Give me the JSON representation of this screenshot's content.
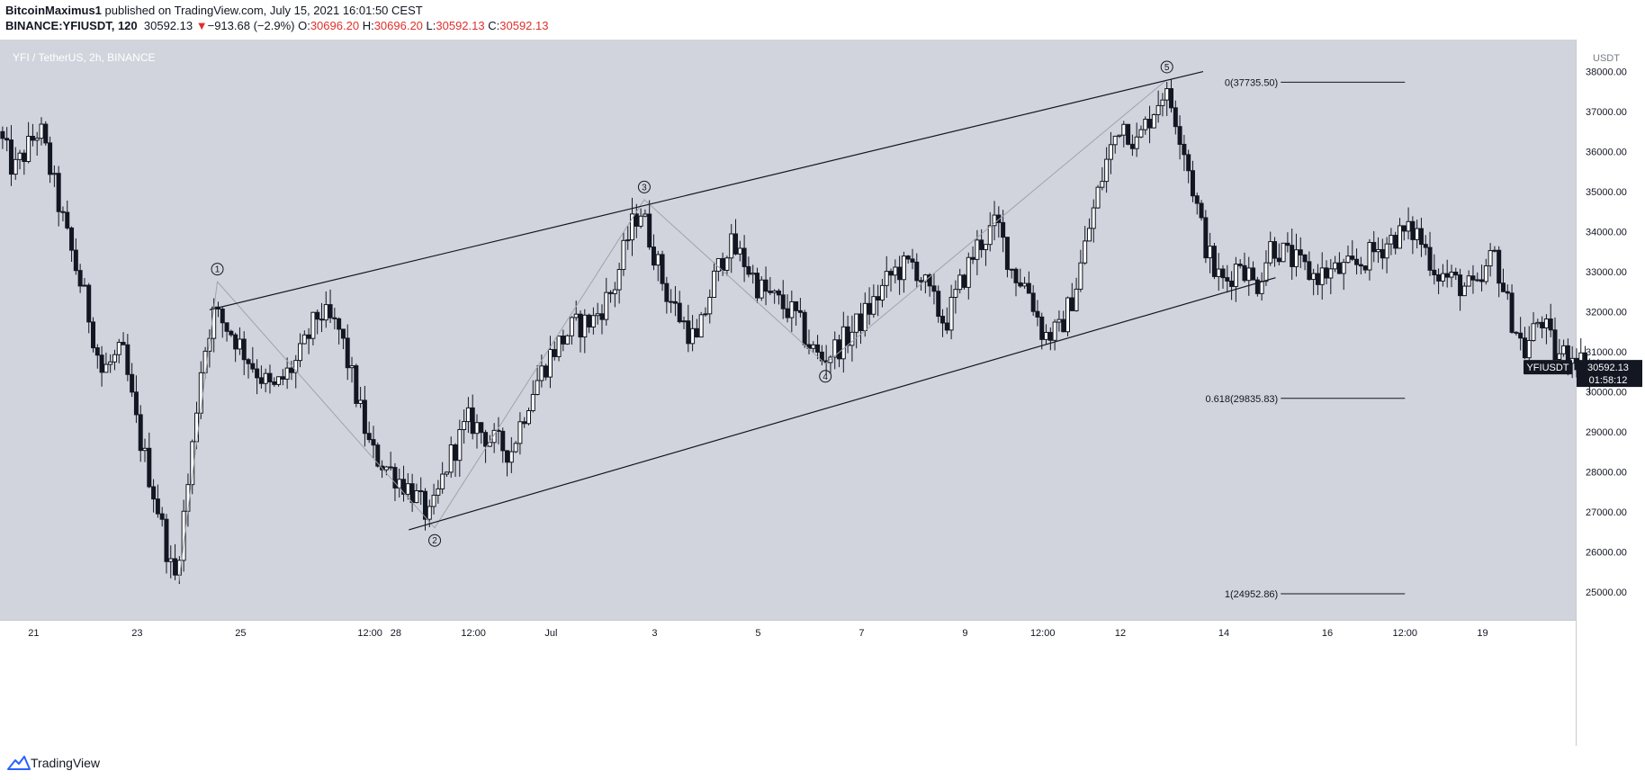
{
  "header": {
    "author": "BitcoinMaximus1",
    "published": "published on TradingView.com, July 15, 2021 16:01:50 CEST",
    "symbol_line": "BINANCE:YFIUSDT, 120",
    "last_price": "30592.13",
    "change_arrow": "▼",
    "change": "−913.68 (−2.9%)",
    "o_label": "O:",
    "o_value": "30696.20",
    "h_label": "H:",
    "h_value": "30696.20",
    "l_label": "L:",
    "l_value": "30592.13",
    "c_label": "C:",
    "c_value": "30592.13"
  },
  "footer": {
    "brand": "TradingView"
  },
  "colors": {
    "plot_bg": "#d1d4dc",
    "axis_bg": "#ffffff",
    "candle": "#131722",
    "down_red": "#e0302d",
    "price_badge_bg": "#131722",
    "price_badge_text": "#ffffff",
    "zigzag": "#a0a3aa"
  },
  "chart_data": {
    "type": "candlestick",
    "title": "YFI / TetherUS, 2h, BINANCE",
    "currency": "USDT",
    "symbol_badge": "YFIUSDT",
    "last_price": "30592.13",
    "countdown": "01:58:12",
    "ylim": [
      24300,
      38800
    ],
    "y_ticks": [
      "25000.00",
      "26000.00",
      "27000.00",
      "28000.00",
      "29000.00",
      "30000.00",
      "31000.00",
      "32000.00",
      "33000.00",
      "34000.00",
      "35000.00",
      "36000.00",
      "37000.00",
      "38000.00"
    ],
    "x_ticks": [
      "21",
      "23",
      "25",
      "12:00",
      "28",
      "12:00",
      "Jul",
      "3",
      "5",
      "7",
      "9",
      "12:00",
      "12",
      "14",
      "16",
      "12:00",
      "19"
    ],
    "x_tick_days": [
      0,
      2,
      4,
      6.5,
      7,
      8.5,
      10,
      12,
      14,
      16,
      18,
      19.5,
      21,
      23,
      25,
      26.5,
      28
    ],
    "x_range_days": [
      -0.65,
      29.8
    ],
    "path": [
      [
        -0.6,
        36500
      ],
      [
        -0.3,
        35500
      ],
      [
        0.2,
        36600
      ],
      [
        0.7,
        34000
      ],
      [
        1.1,
        32200
      ],
      [
        1.4,
        30500
      ],
      [
        1.8,
        31000
      ],
      [
        2.1,
        29000
      ],
      [
        2.5,
        27000
      ],
      [
        2.8,
        25200
      ],
      [
        3.1,
        28000
      ],
      [
        3.3,
        30500
      ],
      [
        3.55,
        32000
      ],
      [
        3.9,
        31500
      ],
      [
        4.3,
        30700
      ],
      [
        4.7,
        30000
      ],
      [
        5.2,
        30800
      ],
      [
        5.6,
        32000
      ],
      [
        6.0,
        31500
      ],
      [
        6.3,
        30000
      ],
      [
        6.6,
        28500
      ],
      [
        7.0,
        28000
      ],
      [
        7.4,
        27500
      ],
      [
        7.75,
        26800
      ],
      [
        8.1,
        28300
      ],
      [
        8.5,
        29300
      ],
      [
        8.9,
        28800
      ],
      [
        9.3,
        28500
      ],
      [
        9.7,
        30000
      ],
      [
        10.1,
        31000
      ],
      [
        10.5,
        31600
      ],
      [
        10.9,
        31800
      ],
      [
        11.3,
        32600
      ],
      [
        11.6,
        34000
      ],
      [
        11.8,
        34600
      ],
      [
        12.0,
        33800
      ],
      [
        12.3,
        32500
      ],
      [
        12.6,
        31800
      ],
      [
        12.9,
        31200
      ],
      [
        13.2,
        32700
      ],
      [
        13.5,
        33700
      ],
      [
        13.8,
        33300
      ],
      [
        14.1,
        32600
      ],
      [
        14.5,
        32200
      ],
      [
        14.8,
        31900
      ],
      [
        15.1,
        31100
      ],
      [
        15.3,
        30800
      ],
      [
        15.6,
        31100
      ],
      [
        15.9,
        31500
      ],
      [
        16.3,
        32200
      ],
      [
        16.7,
        33000
      ],
      [
        17.1,
        33200
      ],
      [
        17.4,
        32400
      ],
      [
        17.7,
        31700
      ],
      [
        18.0,
        32700
      ],
      [
        18.3,
        33600
      ],
      [
        18.7,
        34200
      ],
      [
        19.0,
        33000
      ],
      [
        19.3,
        32600
      ],
      [
        19.6,
        31400
      ],
      [
        19.9,
        31500
      ],
      [
        20.2,
        32500
      ],
      [
        20.5,
        34200
      ],
      [
        20.8,
        35700
      ],
      [
        21.1,
        36800
      ],
      [
        21.4,
        36200
      ],
      [
        21.7,
        37000
      ],
      [
        21.9,
        37500
      ],
      [
        22.1,
        37100
      ],
      [
        22.3,
        36200
      ],
      [
        22.5,
        35000
      ],
      [
        22.7,
        33800
      ],
      [
        22.9,
        33000
      ],
      [
        23.1,
        32700
      ],
      [
        23.4,
        33300
      ],
      [
        23.7,
        32600
      ],
      [
        24.0,
        33700
      ],
      [
        24.4,
        33300
      ],
      [
        24.8,
        32900
      ],
      [
        25.2,
        33000
      ],
      [
        25.6,
        33100
      ],
      [
        26.0,
        33500
      ],
      [
        26.4,
        33900
      ],
      [
        26.8,
        34000
      ],
      [
        27.2,
        33000
      ],
      [
        27.6,
        32700
      ],
      [
        28.0,
        32500
      ],
      [
        28.3,
        33500
      ],
      [
        28.6,
        32000
      ],
      [
        28.9,
        31000
      ],
      [
        29.2,
        31900
      ],
      [
        29.5,
        30900
      ],
      [
        29.8,
        31000
      ],
      [
        30.1,
        30600
      ],
      [
        30.3,
        30592
      ]
    ],
    "annotations": {
      "waves": [
        {
          "label": "1",
          "day": 3.55,
          "price": 32750
        },
        {
          "label": "2",
          "day": 7.75,
          "price": 26600
        },
        {
          "label": "3",
          "day": 11.8,
          "price": 34800
        },
        {
          "label": "4",
          "day": 15.3,
          "price": 30700
        },
        {
          "label": "5",
          "day": 21.9,
          "price": 37800
        }
      ],
      "channel_upper": [
        [
          3.4,
          32050
        ],
        [
          22.6,
          38000
        ]
      ],
      "channel_lower": [
        [
          7.25,
          26550
        ],
        [
          24.0,
          32850
        ]
      ],
      "fib": [
        {
          "label": "0(37735.50)",
          "price": 37735.5
        },
        {
          "label": "0.618(29835.83)",
          "price": 29835.83
        },
        {
          "label": "1(24952.86)",
          "price": 24952.86
        }
      ],
      "fib_x_range_days": [
        24.1,
        26.5
      ]
    }
  }
}
